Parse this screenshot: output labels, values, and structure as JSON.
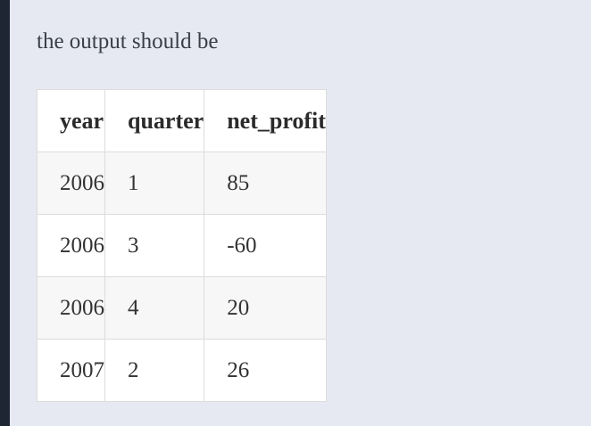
{
  "intro_text": "the output should be",
  "table": {
    "headers": [
      "year",
      "quarter",
      "net_profit"
    ],
    "rows": [
      [
        "2006",
        "1",
        "85"
      ],
      [
        "2006",
        "3",
        "-60"
      ],
      [
        "2006",
        "4",
        "20"
      ],
      [
        "2007",
        "2",
        "26"
      ]
    ]
  }
}
